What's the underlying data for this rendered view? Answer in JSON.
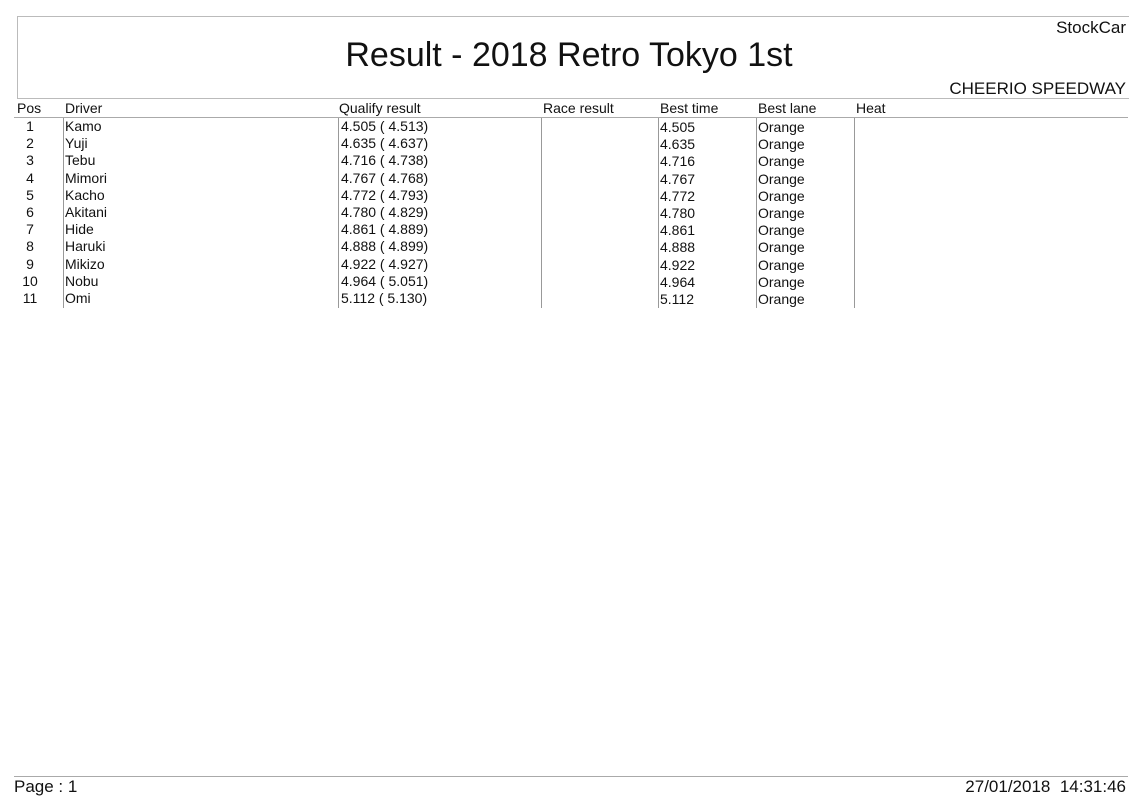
{
  "header": {
    "title": "Result - 2018 Retro Tokyo 1st",
    "category": "StockCar",
    "venue": "CHEERIO SPEEDWAY"
  },
  "table": {
    "columns": [
      "Pos",
      "Driver",
      "Qualify result",
      "Race result",
      "Best time",
      "Best lane",
      "Heat"
    ],
    "rows": [
      {
        "pos": "1",
        "driver": "Kamo",
        "qualify": "4.505 ( 4.513)",
        "race": "",
        "best_time": "4.505",
        "best_lane": "Orange",
        "heat": ""
      },
      {
        "pos": "2",
        "driver": "Yuji",
        "qualify": "4.635 ( 4.637)",
        "race": "",
        "best_time": "4.635",
        "best_lane": "Orange",
        "heat": ""
      },
      {
        "pos": "3",
        "driver": "Tebu",
        "qualify": "4.716 ( 4.738)",
        "race": "",
        "best_time": "4.716",
        "best_lane": "Orange",
        "heat": ""
      },
      {
        "pos": "4",
        "driver": "Mimori",
        "qualify": "4.767 ( 4.768)",
        "race": "",
        "best_time": "4.767",
        "best_lane": "Orange",
        "heat": ""
      },
      {
        "pos": "5",
        "driver": "Kacho",
        "qualify": "4.772 ( 4.793)",
        "race": "",
        "best_time": "4.772",
        "best_lane": "Orange",
        "heat": ""
      },
      {
        "pos": "6",
        "driver": "Akitani",
        "qualify": "4.780 ( 4.829)",
        "race": "",
        "best_time": "4.780",
        "best_lane": "Orange",
        "heat": ""
      },
      {
        "pos": "7",
        "driver": "Hide",
        "qualify": "4.861 ( 4.889)",
        "race": "",
        "best_time": "4.861",
        "best_lane": "Orange",
        "heat": ""
      },
      {
        "pos": "8",
        "driver": "Haruki",
        "qualify": "4.888 ( 4.899)",
        "race": "",
        "best_time": "4.888",
        "best_lane": "Orange",
        "heat": ""
      },
      {
        "pos": "9",
        "driver": "Mikizo",
        "qualify": "4.922 ( 4.927)",
        "race": "",
        "best_time": "4.922",
        "best_lane": "Orange",
        "heat": ""
      },
      {
        "pos": "10",
        "driver": "Nobu",
        "qualify": "4.964 ( 5.051)",
        "race": "",
        "best_time": "4.964",
        "best_lane": "Orange",
        "heat": ""
      },
      {
        "pos": "11",
        "driver": "Omi",
        "qualify": "5.112 ( 5.130)",
        "race": "",
        "best_time": "5.112",
        "best_lane": "Orange",
        "heat": ""
      }
    ]
  },
  "footer": {
    "page": "Page : 1",
    "datetime": "27/01/2018  14:31:46"
  }
}
